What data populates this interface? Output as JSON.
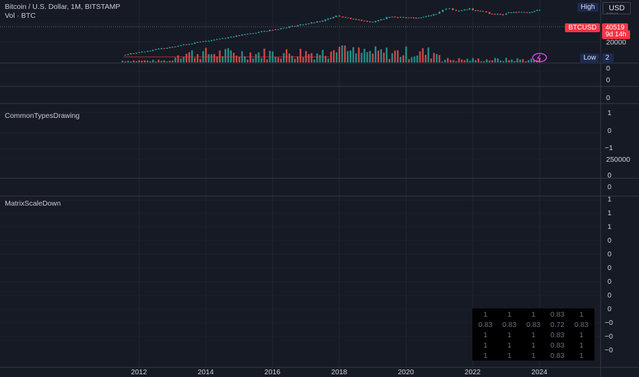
{
  "header": {
    "symbol_line": "Bitcoin / U.S. Dollar, 1M, BITSTAMP",
    "volume_line": "Vol · BTC",
    "high_label": "High",
    "low_label": "Low",
    "low_value": "2",
    "currency": "USD"
  },
  "price_tag": {
    "ticker": "BTCUSD",
    "price": "40519",
    "countdown": "9d 14h",
    "color": "#f23645"
  },
  "price_axis": {
    "top_dashes": "-----",
    "level_20000": "20000"
  },
  "panes": {
    "pane2_labels": [
      "0",
      "0"
    ],
    "pane3_zero": "0",
    "common_title": "CommonTypesDrawing",
    "common_labels": [
      "1",
      "0",
      "−1",
      "250000",
      "0",
      "0"
    ],
    "matrix_title": "MatrixScaleDown",
    "matrix_labels": [
      "1",
      "1",
      "1",
      "0",
      "0",
      "0",
      "0",
      "0",
      "0",
      "−0",
      "−0",
      "−0",
      "−0",
      "−0",
      "−0"
    ]
  },
  "time_axis": {
    "labels": [
      "2012",
      "2014",
      "2016",
      "2018",
      "2020",
      "2022",
      "2024"
    ]
  },
  "matrix_table": [
    [
      "1",
      "1",
      "1",
      "0.83",
      "1"
    ],
    [
      "0.83",
      "0.83",
      "0.83",
      "0.72",
      "0.83"
    ],
    [
      "1",
      "1",
      "1",
      "0.83",
      "1"
    ],
    [
      "1",
      "1",
      "1",
      "0.83",
      "1"
    ],
    [
      "1",
      "1",
      "1",
      "0.83",
      "1"
    ]
  ],
  "chart_data": {
    "type": "candlestick",
    "xlabel": "",
    "ylabel": "",
    "x_years": [
      2012,
      2014,
      2016,
      2018,
      2020,
      2022,
      2024
    ],
    "price_series": [
      [
        2011.5,
        5
      ],
      [
        2016.0,
        800
      ],
      [
        2017.5,
        4700
      ],
      [
        2017.9,
        13800
      ],
      [
        2018.1,
        10200
      ],
      [
        2018.5,
        6300
      ],
      [
        2019.0,
        3700
      ],
      [
        2019.5,
        10800
      ],
      [
        2020.0,
        9300
      ],
      [
        2020.3,
        8600
      ],
      [
        2020.6,
        11400
      ],
      [
        2020.9,
        19700
      ],
      [
        2021.0,
        29000
      ],
      [
        2021.1,
        45200
      ],
      [
        2021.3,
        57700
      ],
      [
        2021.5,
        35000
      ],
      [
        2021.75,
        43800
      ],
      [
        2021.9,
        57000
      ],
      [
        2022.0,
        38500
      ],
      [
        2022.3,
        31700
      ],
      [
        2022.5,
        19900
      ],
      [
        2022.9,
        16500
      ],
      [
        2023.0,
        23100
      ],
      [
        2023.3,
        28500
      ],
      [
        2023.7,
        27000
      ],
      [
        2023.85,
        34600
      ],
      [
        2024.0,
        40519
      ]
    ],
    "up_color": "#26a69a",
    "down_color": "#ef5350",
    "volume_color_up": "#26a69a",
    "volume_color_down": "#ef5350"
  }
}
